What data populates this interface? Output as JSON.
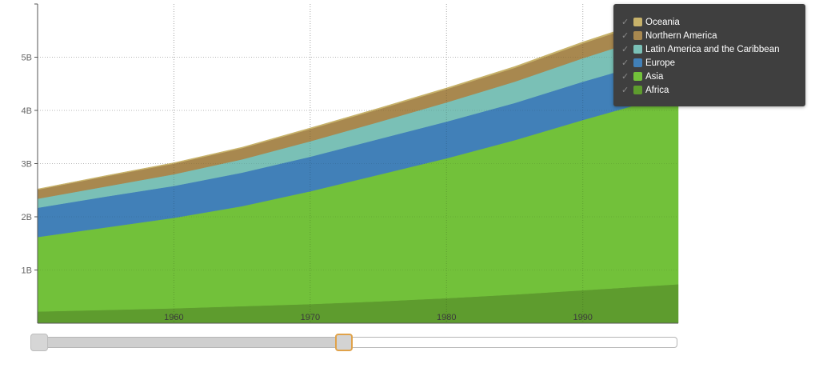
{
  "chart_data": {
    "type": "area",
    "stacked": true,
    "x": [
      1950,
      1955,
      1960,
      1965,
      1970,
      1975,
      1980,
      1985,
      1990,
      1995
    ],
    "xlim": [
      1950,
      1997
    ],
    "ylim": [
      0,
      6
    ],
    "y_unit": "B",
    "xticks": [
      1960,
      1970,
      1980,
      1990
    ],
    "yticks": [
      {
        "value": 1,
        "label": "1B"
      },
      {
        "value": 2,
        "label": "2B"
      },
      {
        "value": 3,
        "label": "3B"
      },
      {
        "value": 4,
        "label": "4B"
      },
      {
        "value": 5,
        "label": "5B"
      }
    ],
    "grid": true,
    "legend_position": "top-right",
    "series": [
      {
        "name": "Africa",
        "color": "#5e9c2e",
        "values": [
          0.22,
          0.25,
          0.28,
          0.32,
          0.36,
          0.41,
          0.47,
          0.54,
          0.62,
          0.7
        ]
      },
      {
        "name": "Asia",
        "color": "#72c13a",
        "values": [
          1.4,
          1.55,
          1.7,
          1.88,
          2.12,
          2.38,
          2.63,
          2.9,
          3.2,
          3.48
        ]
      },
      {
        "name": "Europe",
        "color": "#4180b8",
        "values": [
          0.55,
          0.58,
          0.6,
          0.63,
          0.65,
          0.67,
          0.69,
          0.7,
          0.72,
          0.73
        ]
      },
      {
        "name": "Latin America and the Caribbean",
        "color": "#7ac0b6",
        "values": [
          0.17,
          0.19,
          0.22,
          0.25,
          0.29,
          0.32,
          0.36,
          0.4,
          0.44,
          0.48
        ]
      },
      {
        "name": "Northern America",
        "color": "#a8884f",
        "values": [
          0.17,
          0.19,
          0.2,
          0.21,
          0.23,
          0.24,
          0.25,
          0.26,
          0.28,
          0.29
        ]
      },
      {
        "name": "Oceania",
        "color": "#c7b26a",
        "values": [
          0.013,
          0.014,
          0.016,
          0.018,
          0.02,
          0.021,
          0.023,
          0.025,
          0.027,
          0.029
        ]
      }
    ],
    "legend_order": [
      "Oceania",
      "Northern America",
      "Latin America and the Caribbean",
      "Europe",
      "Asia",
      "Africa"
    ]
  },
  "legend": {
    "check_glyph": "✓"
  },
  "slider": {
    "range_start_fraction": 0.0,
    "range_end_fraction": 0.485
  }
}
